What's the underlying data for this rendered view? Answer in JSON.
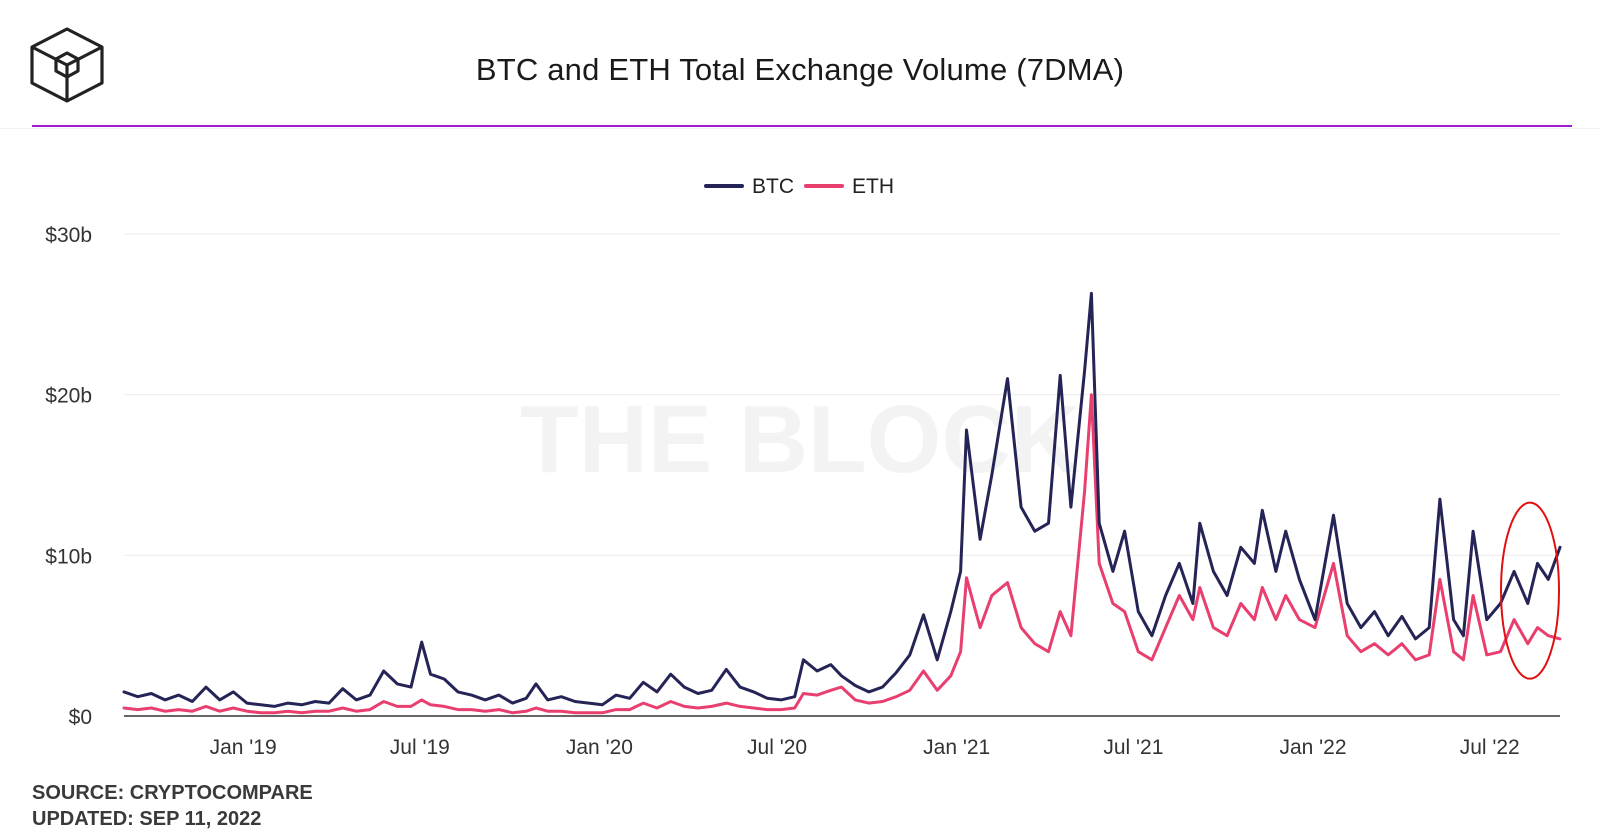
{
  "header": {
    "title": "BTC and ETH Total Exchange Volume (7DMA)"
  },
  "watermark": "THE BLOCK",
  "footer": {
    "source": "SOURCE: CRYPTOCOMPARE",
    "updated": "UPDATED: SEP 11, 2022"
  },
  "colors": {
    "btc": "#252456",
    "eth": "#e83f6f",
    "accent_rule": "#9b1fd1",
    "annotation": "#e01010"
  },
  "chart_data": {
    "type": "line",
    "title": "BTC and ETH Total Exchange Volume (7DMA)",
    "xlabel": "",
    "ylabel": "",
    "ylim": [
      0,
      30
    ],
    "y_unit": "billion USD",
    "yticks": [
      0,
      10,
      20,
      30
    ],
    "ytick_labels": [
      "$0",
      "$10b",
      "$20b",
      "$30b"
    ],
    "x_range": [
      "2018-09-01",
      "2022-09-11"
    ],
    "xticks": [
      {
        "date": "2019-01-01",
        "label": "Jan '19"
      },
      {
        "date": "2019-07-01",
        "label": "Jul '19"
      },
      {
        "date": "2020-01-01",
        "label": "Jan '20"
      },
      {
        "date": "2020-07-01",
        "label": "Jul '20"
      },
      {
        "date": "2021-01-01",
        "label": "Jan '21"
      },
      {
        "date": "2021-07-01",
        "label": "Jul '21"
      },
      {
        "date": "2022-01-01",
        "label": "Jan '22"
      },
      {
        "date": "2022-07-01",
        "label": "Jul '22"
      }
    ],
    "legend_position": "top-center",
    "grid": true,
    "annotation": "red ellipse around the most recent values (Aug–Sep 2022)",
    "series": [
      {
        "name": "BTC",
        "color": "#252456",
        "points": [
          [
            "2018-09-01",
            1.5
          ],
          [
            "2018-09-15",
            1.2
          ],
          [
            "2018-09-29",
            1.4
          ],
          [
            "2018-10-13",
            1.0
          ],
          [
            "2018-10-27",
            1.3
          ],
          [
            "2018-11-10",
            0.9
          ],
          [
            "2018-11-24",
            1.8
          ],
          [
            "2018-12-08",
            1.0
          ],
          [
            "2018-12-22",
            1.5
          ],
          [
            "2019-01-05",
            0.8
          ],
          [
            "2019-01-19",
            0.7
          ],
          [
            "2019-02-02",
            0.6
          ],
          [
            "2019-02-16",
            0.8
          ],
          [
            "2019-03-02",
            0.7
          ],
          [
            "2019-03-16",
            0.9
          ],
          [
            "2019-03-30",
            0.8
          ],
          [
            "2019-04-13",
            1.7
          ],
          [
            "2019-04-27",
            1.0
          ],
          [
            "2019-05-11",
            1.3
          ],
          [
            "2019-05-25",
            2.8
          ],
          [
            "2019-06-08",
            2.0
          ],
          [
            "2019-06-22",
            1.8
          ],
          [
            "2019-07-03",
            4.6
          ],
          [
            "2019-07-12",
            2.6
          ],
          [
            "2019-07-26",
            2.3
          ],
          [
            "2019-08-09",
            1.5
          ],
          [
            "2019-08-23",
            1.3
          ],
          [
            "2019-09-06",
            1.0
          ],
          [
            "2019-09-20",
            1.3
          ],
          [
            "2019-10-04",
            0.8
          ],
          [
            "2019-10-18",
            1.1
          ],
          [
            "2019-10-28",
            2.0
          ],
          [
            "2019-11-09",
            1.0
          ],
          [
            "2019-11-23",
            1.2
          ],
          [
            "2019-12-07",
            0.9
          ],
          [
            "2019-12-21",
            0.8
          ],
          [
            "2020-01-04",
            0.7
          ],
          [
            "2020-01-18",
            1.3
          ],
          [
            "2020-02-01",
            1.1
          ],
          [
            "2020-02-15",
            2.1
          ],
          [
            "2020-02-29",
            1.5
          ],
          [
            "2020-03-14",
            2.6
          ],
          [
            "2020-03-28",
            1.8
          ],
          [
            "2020-04-11",
            1.4
          ],
          [
            "2020-04-25",
            1.6
          ],
          [
            "2020-05-10",
            2.9
          ],
          [
            "2020-05-24",
            1.8
          ],
          [
            "2020-06-07",
            1.5
          ],
          [
            "2020-06-21",
            1.1
          ],
          [
            "2020-07-05",
            1.0
          ],
          [
            "2020-07-19",
            1.2
          ],
          [
            "2020-07-28",
            3.5
          ],
          [
            "2020-08-11",
            2.8
          ],
          [
            "2020-08-25",
            3.2
          ],
          [
            "2020-09-05",
            2.5
          ],
          [
            "2020-09-19",
            1.9
          ],
          [
            "2020-10-03",
            1.5
          ],
          [
            "2020-10-17",
            1.8
          ],
          [
            "2020-10-31",
            2.7
          ],
          [
            "2020-11-14",
            3.8
          ],
          [
            "2020-11-28",
            6.3
          ],
          [
            "2020-12-12",
            3.5
          ],
          [
            "2020-12-26",
            6.5
          ],
          [
            "2021-01-05",
            9.0
          ],
          [
            "2021-01-11",
            17.8
          ],
          [
            "2021-01-25",
            11.0
          ],
          [
            "2021-02-06",
            15.0
          ],
          [
            "2021-02-22",
            21.0
          ],
          [
            "2021-03-08",
            13.0
          ],
          [
            "2021-03-22",
            11.5
          ],
          [
            "2021-04-05",
            12.0
          ],
          [
            "2021-04-17",
            21.2
          ],
          [
            "2021-04-28",
            13.0
          ],
          [
            "2021-05-12",
            21.5
          ],
          [
            "2021-05-19",
            26.3
          ],
          [
            "2021-05-27",
            12.0
          ],
          [
            "2021-06-10",
            9.0
          ],
          [
            "2021-06-22",
            11.5
          ],
          [
            "2021-07-06",
            6.5
          ],
          [
            "2021-07-20",
            5.0
          ],
          [
            "2021-08-03",
            7.5
          ],
          [
            "2021-08-17",
            9.5
          ],
          [
            "2021-08-31",
            7.0
          ],
          [
            "2021-09-07",
            12.0
          ],
          [
            "2021-09-21",
            9.0
          ],
          [
            "2021-10-05",
            7.5
          ],
          [
            "2021-10-19",
            10.5
          ],
          [
            "2021-11-02",
            9.5
          ],
          [
            "2021-11-10",
            12.8
          ],
          [
            "2021-11-24",
            9.0
          ],
          [
            "2021-12-04",
            11.5
          ],
          [
            "2021-12-18",
            8.5
          ],
          [
            "2022-01-03",
            6.0
          ],
          [
            "2022-01-22",
            12.5
          ],
          [
            "2022-02-05",
            7.0
          ],
          [
            "2022-02-19",
            5.5
          ],
          [
            "2022-03-05",
            6.5
          ],
          [
            "2022-03-19",
            5.0
          ],
          [
            "2022-04-02",
            6.2
          ],
          [
            "2022-04-16",
            4.8
          ],
          [
            "2022-04-30",
            5.5
          ],
          [
            "2022-05-11",
            13.5
          ],
          [
            "2022-05-25",
            6.0
          ],
          [
            "2022-06-04",
            5.0
          ],
          [
            "2022-06-14",
            11.5
          ],
          [
            "2022-06-28",
            6.0
          ],
          [
            "2022-07-12",
            7.0
          ],
          [
            "2022-07-26",
            9.0
          ],
          [
            "2022-08-09",
            7.0
          ],
          [
            "2022-08-19",
            9.5
          ],
          [
            "2022-08-30",
            8.5
          ],
          [
            "2022-09-11",
            10.5
          ]
        ]
      },
      {
        "name": "ETH",
        "color": "#e83f6f",
        "points": [
          [
            "2018-09-01",
            0.5
          ],
          [
            "2018-09-15",
            0.4
          ],
          [
            "2018-09-29",
            0.5
          ],
          [
            "2018-10-13",
            0.3
          ],
          [
            "2018-10-27",
            0.4
          ],
          [
            "2018-11-10",
            0.3
          ],
          [
            "2018-11-24",
            0.6
          ],
          [
            "2018-12-08",
            0.3
          ],
          [
            "2018-12-22",
            0.5
          ],
          [
            "2019-01-05",
            0.3
          ],
          [
            "2019-01-19",
            0.2
          ],
          [
            "2019-02-02",
            0.2
          ],
          [
            "2019-02-16",
            0.3
          ],
          [
            "2019-03-02",
            0.2
          ],
          [
            "2019-03-16",
            0.3
          ],
          [
            "2019-03-30",
            0.3
          ],
          [
            "2019-04-13",
            0.5
          ],
          [
            "2019-04-27",
            0.3
          ],
          [
            "2019-05-11",
            0.4
          ],
          [
            "2019-05-25",
            0.9
          ],
          [
            "2019-06-08",
            0.6
          ],
          [
            "2019-06-22",
            0.6
          ],
          [
            "2019-07-03",
            1.0
          ],
          [
            "2019-07-12",
            0.7
          ],
          [
            "2019-07-26",
            0.6
          ],
          [
            "2019-08-09",
            0.4
          ],
          [
            "2019-08-23",
            0.4
          ],
          [
            "2019-09-06",
            0.3
          ],
          [
            "2019-09-20",
            0.4
          ],
          [
            "2019-10-04",
            0.2
          ],
          [
            "2019-10-18",
            0.3
          ],
          [
            "2019-10-28",
            0.5
          ],
          [
            "2019-11-09",
            0.3
          ],
          [
            "2019-11-23",
            0.3
          ],
          [
            "2019-12-07",
            0.2
          ],
          [
            "2019-12-21",
            0.2
          ],
          [
            "2020-01-04",
            0.2
          ],
          [
            "2020-01-18",
            0.4
          ],
          [
            "2020-02-01",
            0.4
          ],
          [
            "2020-02-15",
            0.8
          ],
          [
            "2020-02-29",
            0.5
          ],
          [
            "2020-03-14",
            0.9
          ],
          [
            "2020-03-28",
            0.6
          ],
          [
            "2020-04-11",
            0.5
          ],
          [
            "2020-04-25",
            0.6
          ],
          [
            "2020-05-10",
            0.8
          ],
          [
            "2020-05-24",
            0.6
          ],
          [
            "2020-06-07",
            0.5
          ],
          [
            "2020-06-21",
            0.4
          ],
          [
            "2020-07-05",
            0.4
          ],
          [
            "2020-07-19",
            0.5
          ],
          [
            "2020-07-28",
            1.4
          ],
          [
            "2020-08-11",
            1.3
          ],
          [
            "2020-08-25",
            1.6
          ],
          [
            "2020-09-05",
            1.8
          ],
          [
            "2020-09-19",
            1.0
          ],
          [
            "2020-10-03",
            0.8
          ],
          [
            "2020-10-17",
            0.9
          ],
          [
            "2020-10-31",
            1.2
          ],
          [
            "2020-11-14",
            1.6
          ],
          [
            "2020-11-28",
            2.8
          ],
          [
            "2020-12-12",
            1.6
          ],
          [
            "2020-12-26",
            2.5
          ],
          [
            "2021-01-05",
            4.0
          ],
          [
            "2021-01-11",
            8.6
          ],
          [
            "2021-01-25",
            5.5
          ],
          [
            "2021-02-06",
            7.5
          ],
          [
            "2021-02-22",
            8.3
          ],
          [
            "2021-03-08",
            5.5
          ],
          [
            "2021-03-22",
            4.5
          ],
          [
            "2021-04-05",
            4.0
          ],
          [
            "2021-04-17",
            6.5
          ],
          [
            "2021-04-28",
            5.0
          ],
          [
            "2021-05-12",
            14.0
          ],
          [
            "2021-05-19",
            20.0
          ],
          [
            "2021-05-27",
            9.5
          ],
          [
            "2021-06-10",
            7.0
          ],
          [
            "2021-06-22",
            6.5
          ],
          [
            "2021-07-06",
            4.0
          ],
          [
            "2021-07-20",
            3.5
          ],
          [
            "2021-08-03",
            5.5
          ],
          [
            "2021-08-17",
            7.5
          ],
          [
            "2021-08-31",
            6.0
          ],
          [
            "2021-09-07",
            8.0
          ],
          [
            "2021-09-21",
            5.5
          ],
          [
            "2021-10-05",
            5.0
          ],
          [
            "2021-10-19",
            7.0
          ],
          [
            "2021-11-02",
            6.0
          ],
          [
            "2021-11-10",
            8.0
          ],
          [
            "2021-11-24",
            6.0
          ],
          [
            "2021-12-04",
            7.5
          ],
          [
            "2021-12-18",
            6.0
          ],
          [
            "2022-01-03",
            5.5
          ],
          [
            "2022-01-22",
            9.5
          ],
          [
            "2022-02-05",
            5.0
          ],
          [
            "2022-02-19",
            4.0
          ],
          [
            "2022-03-05",
            4.5
          ],
          [
            "2022-03-19",
            3.8
          ],
          [
            "2022-04-02",
            4.5
          ],
          [
            "2022-04-16",
            3.5
          ],
          [
            "2022-04-30",
            3.8
          ],
          [
            "2022-05-11",
            8.5
          ],
          [
            "2022-05-25",
            4.0
          ],
          [
            "2022-06-04",
            3.5
          ],
          [
            "2022-06-14",
            7.5
          ],
          [
            "2022-06-28",
            3.8
          ],
          [
            "2022-07-12",
            4.0
          ],
          [
            "2022-07-26",
            6.0
          ],
          [
            "2022-08-09",
            4.5
          ],
          [
            "2022-08-19",
            5.5
          ],
          [
            "2022-08-30",
            5.0
          ],
          [
            "2022-09-11",
            4.8
          ]
        ]
      }
    ]
  }
}
